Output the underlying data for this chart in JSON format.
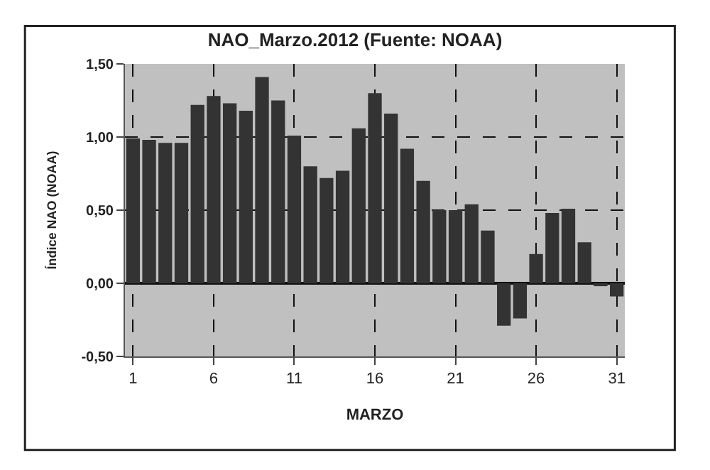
{
  "chart_data": {
    "type": "bar",
    "title": "NAO_Marzo.2012 (Fuente: NOAA)",
    "xlabel": "MARZO",
    "ylabel": "Índice NAO (NOAA)",
    "x": [
      1,
      2,
      3,
      4,
      5,
      6,
      7,
      8,
      9,
      10,
      11,
      12,
      13,
      14,
      15,
      16,
      17,
      18,
      19,
      20,
      21,
      22,
      23,
      24,
      25,
      26,
      27,
      28,
      29,
      30,
      31
    ],
    "values": [
      0.99,
      0.98,
      0.96,
      0.96,
      1.22,
      1.28,
      1.23,
      1.18,
      1.41,
      1.25,
      1.01,
      0.8,
      0.72,
      0.77,
      1.06,
      1.3,
      1.16,
      0.92,
      0.7,
      0.5,
      0.5,
      0.54,
      0.36,
      -0.29,
      -0.24,
      0.2,
      0.48,
      0.51,
      0.28,
      -0.02,
      -0.09
    ],
    "color": "#333333",
    "xlim": [
      0.5,
      31.5
    ],
    "xticks": [
      1,
      6,
      11,
      16,
      21,
      26,
      31
    ],
    "ylim": [
      -0.5,
      1.5
    ],
    "yticks": [
      {
        "value": -0.5,
        "label": "-0,50"
      },
      {
        "value": 0,
        "label": "0,00"
      },
      {
        "value": 0.5,
        "label": "0,50"
      },
      {
        "value": 1,
        "label": "1,00"
      },
      {
        "value": 1.5,
        "label": "1,50"
      }
    ],
    "grid": true
  }
}
